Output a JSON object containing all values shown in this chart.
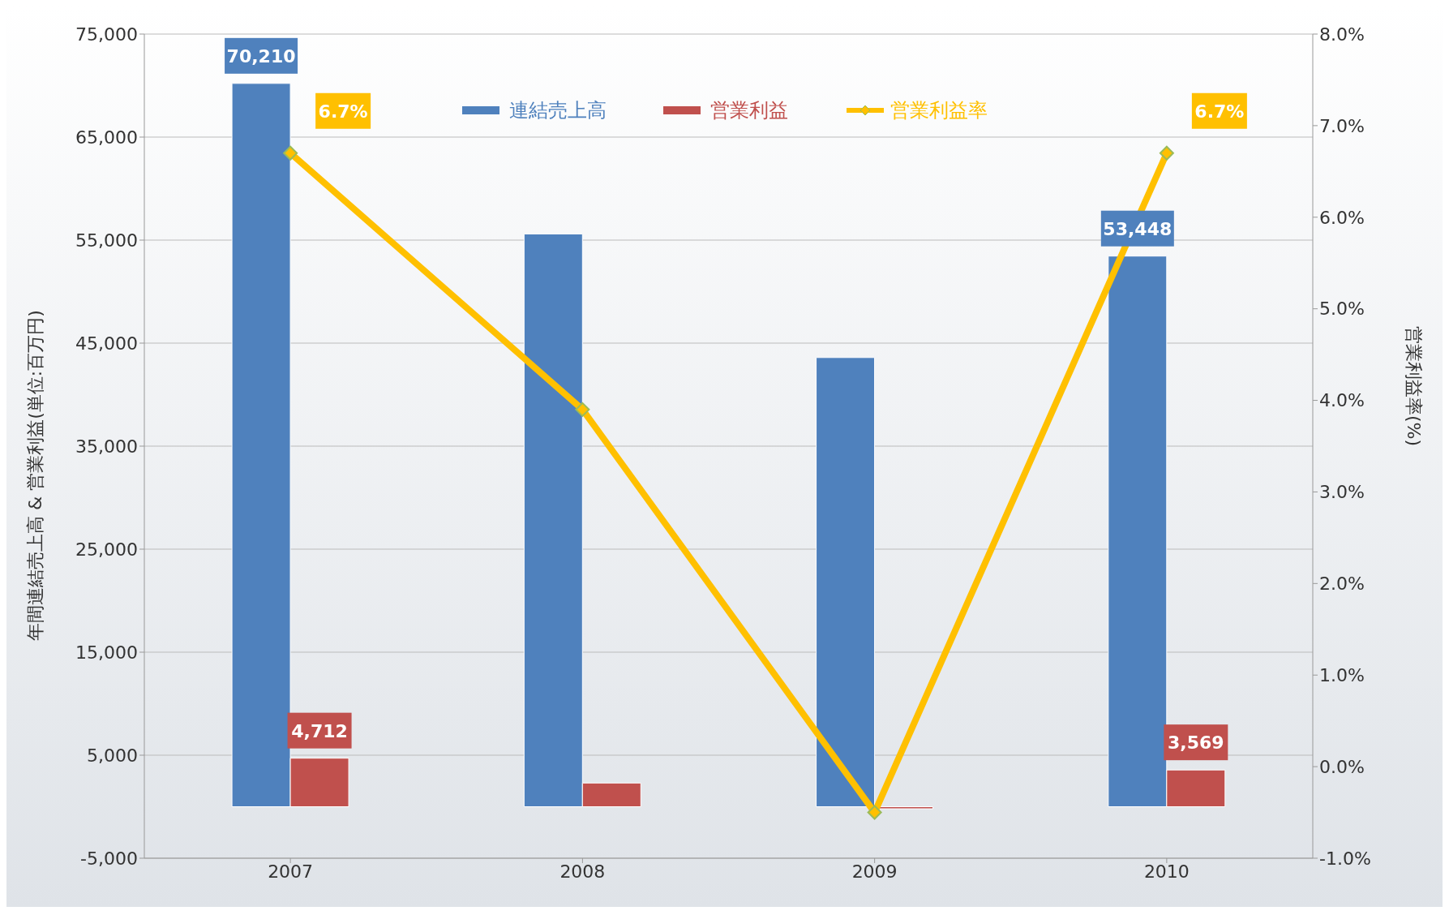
{
  "chart_data": {
    "type": "bar",
    "categories": [
      "2007",
      "2008",
      "2009",
      "2010"
    ],
    "ylabel": "年間連結売上高 & 営業利益(単位:百万円)",
    "y2label": "営業利益率(%)",
    "series": [
      {
        "name": "連結売上高",
        "color": "#4f81bd",
        "values": [
          70210,
          55600,
          43600,
          53448
        ],
        "value_labels": [
          "70,210",
          null,
          null,
          "53,448"
        ]
      },
      {
        "name": "営業利益",
        "color": "#c0504d",
        "values": [
          4712,
          2300,
          -200,
          3569
        ],
        "value_labels": [
          "4,712",
          null,
          null,
          "3,569"
        ]
      },
      {
        "name": "営業利益率",
        "type": "line",
        "axis": "y2",
        "color": "#ffc000",
        "values": [
          6.7,
          3.9,
          -0.5,
          6.7
        ],
        "value_labels": [
          "6.7%",
          null,
          null,
          "6.7%"
        ],
        "marker": "diamond"
      }
    ],
    "ylim": [
      -5000,
      75000
    ],
    "yticks": [
      {
        "value": -5000,
        "label": "-5,000"
      },
      {
        "value": 5000,
        "label": "5,000"
      },
      {
        "value": 15000,
        "label": "15,000"
      },
      {
        "value": 25000,
        "label": "25,000"
      },
      {
        "value": 35000,
        "label": "35,000"
      },
      {
        "value": 45000,
        "label": "45,000"
      },
      {
        "value": 55000,
        "label": "55,000"
      },
      {
        "value": 65000,
        "label": "65,000"
      },
      {
        "value": 75000,
        "label": "75,000"
      }
    ],
    "y2lim": [
      -1,
      8
    ],
    "y2ticks": [
      {
        "value": -1,
        "label": "-1.0%"
      },
      {
        "value": 0,
        "label": "0.0%"
      },
      {
        "value": 1,
        "label": "1.0%"
      },
      {
        "value": 2,
        "label": "2.0%"
      },
      {
        "value": 3,
        "label": "3.0%"
      },
      {
        "value": 4,
        "label": "4.0%"
      },
      {
        "value": 5,
        "label": "5.0%"
      },
      {
        "value": 6,
        "label": "6.0%"
      },
      {
        "value": 7,
        "label": "7.0%"
      },
      {
        "value": 8,
        "label": "8.0%"
      }
    ],
    "grid": "y",
    "legend": "top"
  }
}
